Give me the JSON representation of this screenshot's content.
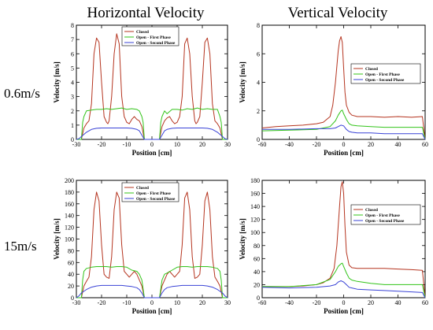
{
  "figure": {
    "column_titles": [
      "Horizontal Velocity",
      "Vertical Velocity"
    ],
    "row_labels": [
      "0.6m/s",
      "15m/s"
    ]
  },
  "colors": {
    "closed": "#b5341f",
    "first": "#33c41a",
    "second": "#3a43d6"
  },
  "chart_data": [
    {
      "type": "line",
      "xlabel": "Position [cm]",
      "ylabel": "Velocity [m/s]",
      "xlim": [
        -30,
        30
      ],
      "ylim": [
        0,
        8
      ],
      "xticks": [
        -30,
        -20,
        -10,
        0,
        10,
        20,
        30
      ],
      "yticks": [
        0,
        1,
        2,
        3,
        4,
        5,
        6,
        7,
        8
      ],
      "legend_position": "top-center",
      "series": [
        {
          "name": "Closed",
          "x": [
            -30,
            -28,
            -27,
            -26,
            -25,
            -24,
            -23,
            -22,
            -21,
            -20,
            -19,
            -18,
            -17.5,
            -17,
            -16,
            -15,
            -14,
            -13,
            -12,
            -11,
            -10,
            -9,
            -8,
            -7,
            -6,
            -5,
            -4,
            -3,
            -2,
            0,
            2,
            3,
            4,
            5,
            6,
            7,
            8,
            9,
            10,
            11,
            12,
            13,
            14,
            15,
            16,
            17,
            17.5,
            18,
            19,
            20,
            21,
            22,
            23,
            24,
            25,
            26,
            27,
            28,
            30
          ],
          "y": [
            0,
            0,
            0.8,
            1.1,
            1.3,
            2.5,
            6,
            7.1,
            6.8,
            4,
            1.6,
            1.2,
            1.1,
            1.3,
            3,
            6,
            7.4,
            6.7,
            3,
            1.6,
            1.2,
            1.1,
            1.4,
            1.6,
            1.4,
            1.3,
            0.9,
            0,
            0,
            0,
            0,
            0,
            0.9,
            1.3,
            1.5,
            1.6,
            1.3,
            1.1,
            1.2,
            1.6,
            3,
            6.7,
            7.1,
            6,
            3,
            1.3,
            1.1,
            1.2,
            1.6,
            4,
            6.8,
            7.1,
            6,
            2.5,
            1.3,
            1.1,
            0.8,
            0,
            0
          ]
        },
        {
          "name": "Open - First Phase",
          "x": [
            -30,
            -28,
            -27.5,
            -27,
            -26,
            -24,
            -22,
            -20,
            -18,
            -16,
            -14,
            -12,
            -10,
            -8,
            -6,
            -5,
            -4,
            -3.5,
            -3,
            0,
            3,
            3.5,
            4,
            5,
            6,
            8,
            10,
            12,
            14,
            16,
            18,
            20,
            22,
            24,
            26,
            27,
            27.5,
            28,
            30
          ],
          "y": [
            0,
            0,
            1.2,
            1.6,
            2.0,
            2.05,
            2.1,
            2.1,
            2.15,
            2.1,
            2.15,
            2.2,
            2.1,
            2.15,
            2.1,
            2.0,
            1.6,
            1.2,
            0,
            0,
            0,
            1.2,
            1.6,
            2.0,
            1.8,
            2.1,
            2.1,
            2.05,
            2.15,
            2.1,
            2.2,
            2.1,
            2.15,
            2.1,
            2.1,
            1.6,
            1.2,
            0,
            0
          ]
        },
        {
          "name": "Open - Second Phase",
          "x": [
            -30,
            -29,
            -28,
            -26,
            -24,
            -22,
            -20,
            -18,
            -16,
            -14,
            -12,
            -10,
            -8,
            -6,
            -5,
            -4,
            -3,
            0,
            3,
            4,
            5,
            6,
            8,
            10,
            12,
            14,
            16,
            18,
            20,
            22,
            24,
            26,
            28,
            29,
            30
          ],
          "y": [
            0,
            0.05,
            0.2,
            0.5,
            0.7,
            0.78,
            0.8,
            0.8,
            0.8,
            0.8,
            0.8,
            0.8,
            0.78,
            0.7,
            0.6,
            0.3,
            0,
            0,
            0,
            0.3,
            0.6,
            0.7,
            0.78,
            0.8,
            0.8,
            0.8,
            0.8,
            0.8,
            0.8,
            0.78,
            0.7,
            0.5,
            0.2,
            0.05,
            0
          ]
        }
      ]
    },
    {
      "type": "line",
      "xlabel": "Position [cm]",
      "ylabel": "Velocity [m/s]",
      "xlim": [
        -60,
        60
      ],
      "ylim": [
        0,
        8
      ],
      "xticks": [
        -60,
        -40,
        -20,
        0,
        20,
        40,
        60
      ],
      "yticks": [
        0,
        2,
        4,
        6,
        8
      ],
      "legend_position": "right",
      "series": [
        {
          "name": "Closed",
          "x": [
            -60,
            -50,
            -40,
            -30,
            -20,
            -15,
            -10,
            -8,
            -6,
            -4,
            -3,
            -2,
            -1,
            0,
            1,
            2,
            4,
            6,
            10,
            20,
            30,
            40,
            50,
            58,
            60
          ],
          "y": [
            0.8,
            0.9,
            0.95,
            1.0,
            1.1,
            1.2,
            1.6,
            2.4,
            4.0,
            6.2,
            6.9,
            7.2,
            6.8,
            5.0,
            3.3,
            2.4,
            1.9,
            1.7,
            1.6,
            1.6,
            1.55,
            1.6,
            1.55,
            1.6,
            0
          ]
        },
        {
          "name": "Open - First Phase",
          "x": [
            -60,
            -40,
            -20,
            -10,
            -6,
            -4,
            -2,
            -1,
            0,
            2,
            4,
            6,
            10,
            20,
            30,
            40,
            50,
            58,
            60
          ],
          "y": [
            0.6,
            0.65,
            0.7,
            0.9,
            1.3,
            1.7,
            2.0,
            2.05,
            1.8,
            1.4,
            1.1,
            1.0,
            0.95,
            0.9,
            0.85,
            0.85,
            0.85,
            0.85,
            0
          ]
        },
        {
          "name": "Open - Second Phase",
          "x": [
            -60,
            -40,
            -20,
            -10,
            -6,
            -4,
            -2,
            0,
            2,
            4,
            6,
            10,
            20,
            30,
            40,
            50,
            58,
            60
          ],
          "y": [
            0.7,
            0.7,
            0.75,
            0.75,
            0.8,
            0.9,
            1.0,
            0.95,
            0.7,
            0.55,
            0.5,
            0.45,
            0.45,
            0.4,
            0.4,
            0.4,
            0.4,
            0
          ]
        }
      ]
    },
    {
      "type": "line",
      "xlabel": "Position [cm]",
      "ylabel": "Velocity [m/s]",
      "xlim": [
        -30,
        30
      ],
      "ylim": [
        0,
        200
      ],
      "xticks": [
        -30,
        -20,
        -10,
        0,
        10,
        20,
        30
      ],
      "yticks": [
        0,
        20,
        40,
        60,
        80,
        100,
        120,
        140,
        160,
        180,
        200
      ],
      "legend_position": "top-center",
      "series": [
        {
          "name": "Closed",
          "x": [
            -30,
            -28,
            -27,
            -26,
            -25,
            -24,
            -23,
            -22,
            -21,
            -20,
            -19,
            -18,
            -17,
            -16,
            -15,
            -14,
            -13,
            -12,
            -11,
            -10,
            -9,
            -8,
            -7,
            -6,
            -5,
            -4,
            -3,
            0,
            3,
            4,
            5,
            6,
            7,
            8,
            9,
            10,
            11,
            12,
            13,
            14,
            15,
            16,
            17,
            18,
            19,
            20,
            21,
            22,
            23,
            24,
            25,
            26,
            27,
            28,
            30
          ],
          "y": [
            0,
            0,
            20,
            28,
            35,
            70,
            150,
            180,
            165,
            90,
            40,
            35,
            33,
            70,
            150,
            180,
            170,
            90,
            45,
            40,
            35,
            40,
            45,
            40,
            30,
            20,
            0,
            0,
            0,
            20,
            30,
            40,
            45,
            40,
            35,
            40,
            45,
            90,
            170,
            180,
            150,
            70,
            33,
            35,
            40,
            90,
            165,
            180,
            150,
            70,
            35,
            28,
            20,
            0,
            0
          ]
        },
        {
          "name": "Open - First Phase",
          "x": [
            -30,
            -28,
            -27.5,
            -27,
            -26,
            -24,
            -22,
            -20,
            -18,
            -16,
            -14,
            -12,
            -10,
            -8,
            -6,
            -5,
            -4,
            -3.5,
            -3,
            0,
            3,
            3.5,
            4,
            5,
            6,
            8,
            10,
            12,
            14,
            16,
            18,
            20,
            22,
            24,
            26,
            27,
            27.5,
            28,
            30
          ],
          "y": [
            0,
            0,
            30,
            45,
            50,
            52,
            53,
            53,
            53,
            52,
            53,
            53,
            52,
            47,
            45,
            40,
            30,
            15,
            0,
            0,
            0,
            15,
            30,
            40,
            42,
            47,
            52,
            53,
            53,
            52,
            53,
            53,
            53,
            52,
            50,
            45,
            30,
            0,
            0
          ]
        },
        {
          "name": "Open - Second Phase",
          "x": [
            -30,
            -29,
            -28,
            -26,
            -24,
            -22,
            -20,
            -18,
            -16,
            -14,
            -12,
            -10,
            -8,
            -6,
            -5,
            -4,
            -3,
            0,
            3,
            4,
            5,
            6,
            8,
            10,
            12,
            14,
            16,
            18,
            20,
            22,
            24,
            26,
            28,
            29,
            30
          ],
          "y": [
            0,
            3,
            8,
            14,
            18,
            20,
            21,
            21,
            21,
            21,
            21,
            20,
            19,
            17,
            14,
            8,
            0,
            0,
            0,
            8,
            14,
            17,
            19,
            20,
            21,
            21,
            21,
            21,
            21,
            20,
            18,
            14,
            8,
            3,
            0
          ]
        }
      ]
    },
    {
      "type": "line",
      "xlabel": "Position [cm]",
      "ylabel": "Velocity [m/s]",
      "xlim": [
        -60,
        60
      ],
      "ylim": [
        0,
        180
      ],
      "xticks": [
        -60,
        -40,
        -20,
        0,
        20,
        40,
        60
      ],
      "yticks": [
        0,
        20,
        40,
        60,
        80,
        100,
        120,
        140,
        160,
        180
      ],
      "legend_position": "right",
      "series": [
        {
          "name": "Closed",
          "x": [
            -60,
            -50,
            -40,
            -30,
            -20,
            -15,
            -10,
            -7,
            -5,
            -3,
            -2,
            -1,
            0,
            1,
            2,
            4,
            6,
            10,
            20,
            30,
            40,
            50,
            58,
            60
          ],
          "y": [
            17,
            17,
            17,
            18,
            20,
            23,
            30,
            45,
            80,
            140,
            170,
            178,
            160,
            110,
            70,
            50,
            46,
            45,
            45,
            45,
            44,
            43,
            42,
            0
          ]
        },
        {
          "name": "Open - First Phase",
          "x": [
            -60,
            -40,
            -20,
            -10,
            -6,
            -4,
            -2,
            -1,
            0,
            2,
            4,
            6,
            10,
            20,
            30,
            40,
            50,
            58,
            60
          ],
          "y": [
            17,
            17,
            20,
            28,
            40,
            48,
            52,
            53,
            48,
            38,
            30,
            27,
            25,
            22,
            20,
            20,
            20,
            20,
            0
          ]
        },
        {
          "name": "Open - Second Phase",
          "x": [
            -60,
            -40,
            -20,
            -10,
            -6,
            -4,
            -2,
            0,
            2,
            4,
            6,
            10,
            20,
            30,
            40,
            50,
            58,
            60
          ],
          "y": [
            16,
            15,
            16,
            18,
            20,
            24,
            26,
            24,
            20,
            16,
            15,
            13,
            12,
            11,
            10,
            9,
            8,
            0
          ]
        }
      ]
    }
  ]
}
